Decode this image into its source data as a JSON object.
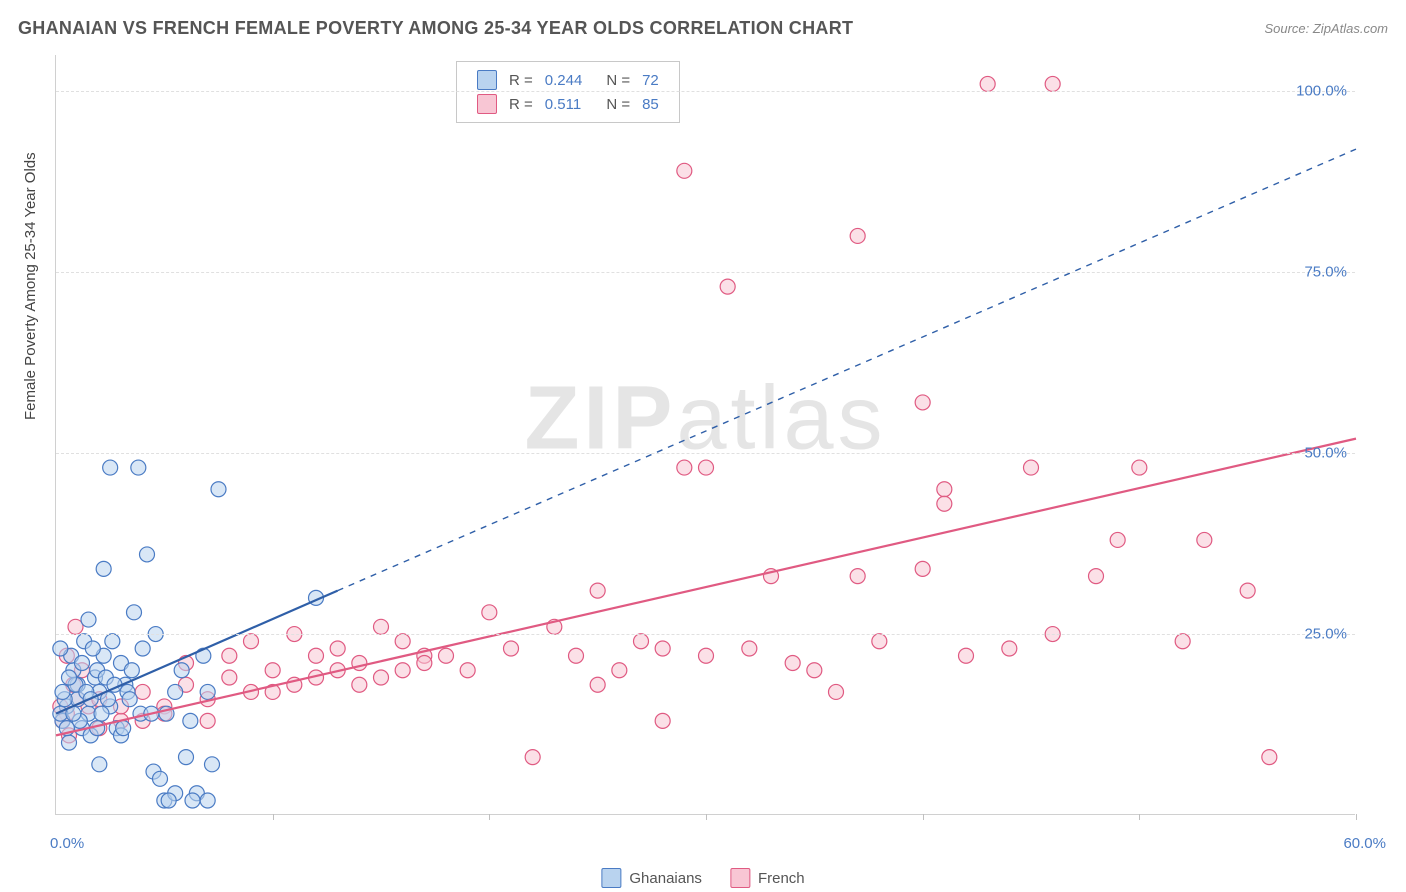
{
  "title": "GHANAIAN VS FRENCH FEMALE POVERTY AMONG 25-34 YEAR OLDS CORRELATION CHART",
  "source_label": "Source: ZipAtlas.com",
  "watermark": {
    "part1": "ZIP",
    "part2": "atlas"
  },
  "y_axis_title": "Female Poverty Among 25-34 Year Olds",
  "chart": {
    "type": "scatter",
    "xlim": [
      0,
      60
    ],
    "ylim": [
      0,
      105
    ],
    "x_origin_label": "0.0%",
    "x_max_label": "60.0%",
    "y_ticks": [
      25,
      50,
      75,
      100
    ],
    "y_tick_labels": [
      "25.0%",
      "50.0%",
      "75.0%",
      "100.0%"
    ],
    "x_tick_positions": [
      10,
      20,
      30,
      40,
      50,
      60
    ],
    "grid_color": "#e0e0e0",
    "background_color": "#ffffff",
    "marker_radius": 7.5,
    "marker_stroke_width": 1.2,
    "line_width_solid": 2.2,
    "line_width_dash": 1.4
  },
  "series": [
    {
      "name": "Ghanaians",
      "fill": "#b9d3ef",
      "stroke": "#4a7bc4",
      "fill_opacity": 0.55,
      "R": "0.244",
      "N": "72",
      "trend": {
        "x1": 0,
        "y1": 14,
        "x2_solid": 13,
        "y2_solid": 31,
        "x2": 60,
        "y2": 92,
        "color": "#2f5fa8"
      },
      "points": [
        [
          0.5,
          15
        ],
        [
          1,
          18
        ],
        [
          1.2,
          12
        ],
        [
          0.8,
          20
        ],
        [
          1.5,
          14
        ],
        [
          2,
          17
        ],
        [
          2.2,
          22
        ],
        [
          0.3,
          13
        ],
        [
          1,
          16
        ],
        [
          1.8,
          19
        ],
        [
          0.6,
          10
        ],
        [
          1.3,
          24
        ],
        [
          2.5,
          15
        ],
        [
          3,
          21
        ],
        [
          0.9,
          18
        ],
        [
          1.6,
          11
        ],
        [
          2.1,
          14
        ],
        [
          0.4,
          16
        ],
        [
          1.1,
          13
        ],
        [
          1.9,
          20
        ],
        [
          0.7,
          22
        ],
        [
          1.4,
          17
        ],
        [
          2.3,
          19
        ],
        [
          3.2,
          18
        ],
        [
          0.2,
          14
        ],
        [
          1.7,
          23
        ],
        [
          2.4,
          16
        ],
        [
          3.5,
          20
        ],
        [
          0.5,
          12
        ],
        [
          1.2,
          21
        ],
        [
          2,
          7
        ],
        [
          2.8,
          12
        ],
        [
          3.3,
          17
        ],
        [
          4,
          23
        ],
        [
          3,
          11
        ],
        [
          5,
          2
        ],
        [
          5.5,
          3
        ],
        [
          6,
          8
        ],
        [
          6.5,
          3
        ],
        [
          4.5,
          6
        ],
        [
          4.8,
          5
        ],
        [
          5.2,
          2
        ],
        [
          6.3,
          2
        ],
        [
          7,
          2
        ],
        [
          7.2,
          7
        ],
        [
          3.6,
          28
        ],
        [
          2.2,
          34
        ],
        [
          4.2,
          36
        ],
        [
          2.5,
          48
        ],
        [
          3.8,
          48
        ],
        [
          7.5,
          45
        ],
        [
          5.8,
          20
        ],
        [
          6.8,
          22
        ],
        [
          1.5,
          27
        ],
        [
          4.6,
          25
        ],
        [
          3.9,
          14
        ],
        [
          5.5,
          17
        ],
        [
          6.2,
          13
        ],
        [
          7,
          17
        ],
        [
          0.3,
          17
        ],
        [
          0.8,
          14
        ],
        [
          1.6,
          16
        ],
        [
          2.7,
          18
        ],
        [
          3.1,
          12
        ],
        [
          4.4,
          14
        ],
        [
          5.1,
          14
        ],
        [
          1.9,
          12
        ],
        [
          0.6,
          19
        ],
        [
          2.6,
          24
        ],
        [
          3.4,
          16
        ],
        [
          12,
          30
        ],
        [
          0.2,
          23
        ]
      ]
    },
    {
      "name": "French",
      "fill": "#f8c6d4",
      "stroke": "#e05a82",
      "fill_opacity": 0.55,
      "R": "0.511",
      "N": "85",
      "trend": {
        "x1": 0,
        "y1": 11,
        "x2_solid": 60,
        "y2_solid": 52,
        "x2": 60,
        "y2": 52,
        "color": "#e05a82"
      },
      "points": [
        [
          0.5,
          14
        ],
        [
          1.5,
          15
        ],
        [
          2,
          16
        ],
        [
          3,
          13
        ],
        [
          4,
          17
        ],
        [
          5,
          15
        ],
        [
          6,
          18
        ],
        [
          7,
          16
        ],
        [
          8,
          19
        ],
        [
          9,
          17
        ],
        [
          10,
          20
        ],
        [
          11,
          18
        ],
        [
          12,
          22
        ],
        [
          13,
          20
        ],
        [
          14,
          21
        ],
        [
          15,
          19
        ],
        [
          16,
          24
        ],
        [
          17,
          22
        ],
        [
          9,
          24
        ],
        [
          11,
          25
        ],
        [
          13,
          23
        ],
        [
          15,
          26
        ],
        [
          17,
          21
        ],
        [
          10,
          17
        ],
        [
          12,
          19
        ],
        [
          14,
          18
        ],
        [
          16,
          20
        ],
        [
          18,
          22
        ],
        [
          19,
          20
        ],
        [
          20,
          28
        ],
        [
          21,
          23
        ],
        [
          22,
          8
        ],
        [
          23,
          26
        ],
        [
          24,
          22
        ],
        [
          25,
          31
        ],
        [
          26,
          20
        ],
        [
          27,
          24
        ],
        [
          28,
          23
        ],
        [
          29,
          48
        ],
        [
          30,
          22
        ],
        [
          32,
          23
        ],
        [
          33,
          33
        ],
        [
          34,
          21
        ],
        [
          35,
          20
        ],
        [
          36,
          17
        ],
        [
          30,
          48
        ],
        [
          28,
          13
        ],
        [
          25,
          18
        ],
        [
          31,
          73
        ],
        [
          37,
          33
        ],
        [
          38,
          24
        ],
        [
          40,
          34
        ],
        [
          41,
          45
        ],
        [
          42,
          22
        ],
        [
          44,
          23
        ],
        [
          45,
          48
        ],
        [
          46,
          25
        ],
        [
          48,
          33
        ],
        [
          49,
          38
        ],
        [
          50,
          48
        ],
        [
          52,
          24
        ],
        [
          53,
          38
        ],
        [
          55,
          31
        ],
        [
          56,
          8
        ],
        [
          40,
          57
        ],
        [
          37,
          80
        ],
        [
          29,
          89
        ],
        [
          43,
          101
        ],
        [
          46,
          101
        ],
        [
          41,
          43
        ],
        [
          6,
          21
        ],
        [
          8,
          22
        ],
        [
          4,
          13
        ],
        [
          2,
          12
        ],
        [
          3,
          15
        ],
        [
          5,
          14
        ],
        [
          7,
          13
        ],
        [
          1,
          16
        ],
        [
          0.3,
          13
        ],
        [
          0.8,
          18
        ],
        [
          0.5,
          22
        ],
        [
          1.2,
          20
        ],
        [
          0.2,
          15
        ],
        [
          0.6,
          11
        ],
        [
          0.9,
          26
        ]
      ]
    }
  ],
  "legend_box": {
    "r_label": "R =",
    "n_label": "N ="
  },
  "bottom_legend": {
    "item1": "Ghanaians",
    "item2": "French"
  }
}
